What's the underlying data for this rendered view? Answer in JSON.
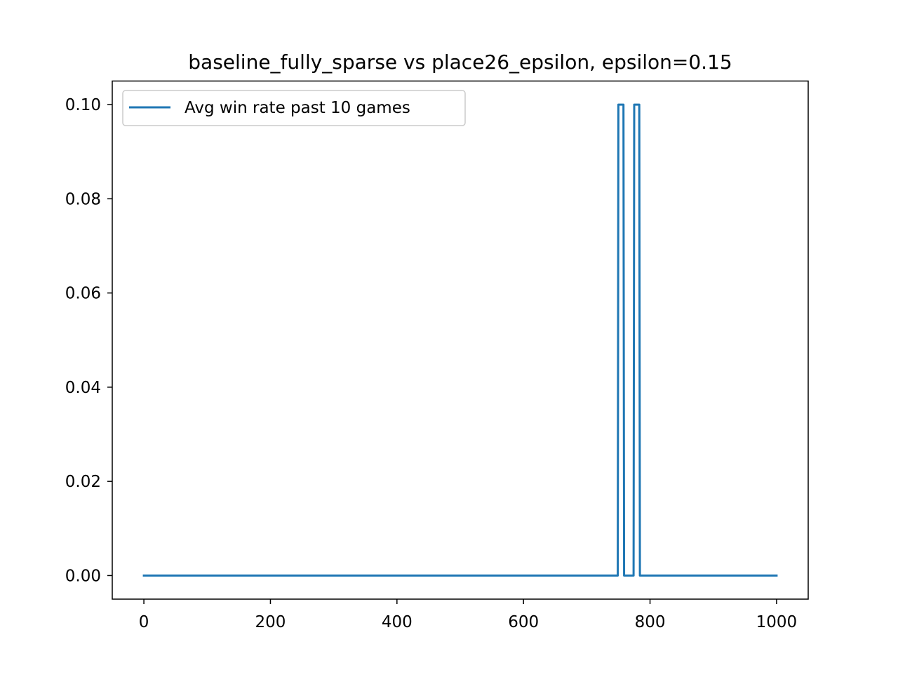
{
  "chart_data": {
    "type": "line",
    "title": "baseline_fully_sparse vs place26_epsilon, epsilon=0.15",
    "xlabel": "",
    "ylabel": "",
    "xlim": [
      -50,
      1050
    ],
    "ylim": [
      -0.005,
      0.105
    ],
    "xticks": [
      0,
      200,
      400,
      600,
      800,
      1000
    ],
    "xtick_labels": [
      "0",
      "200",
      "400",
      "600",
      "800",
      "1000"
    ],
    "yticks": [
      0.0,
      0.02,
      0.04,
      0.06,
      0.08,
      0.1
    ],
    "ytick_labels": [
      "0.00",
      "0.02",
      "0.04",
      "0.06",
      "0.08",
      "0.10"
    ],
    "grid": false,
    "legend_position": "top-left",
    "series": [
      {
        "name": "Avg win rate past 10 games",
        "color": "#1f77b4",
        "x": [
          0,
          749,
          749,
          750,
          750,
          758,
          758,
          759,
          759,
          774,
          774,
          775,
          775,
          783,
          783,
          784,
          784,
          1000
        ],
        "y": [
          0.0,
          0.0,
          0.0,
          0.1,
          0.1,
          0.1,
          0.1,
          0.0,
          0.0,
          0.0,
          0.0,
          0.1,
          0.1,
          0.1,
          0.1,
          0.0,
          0.0,
          0.0
        ]
      }
    ]
  }
}
